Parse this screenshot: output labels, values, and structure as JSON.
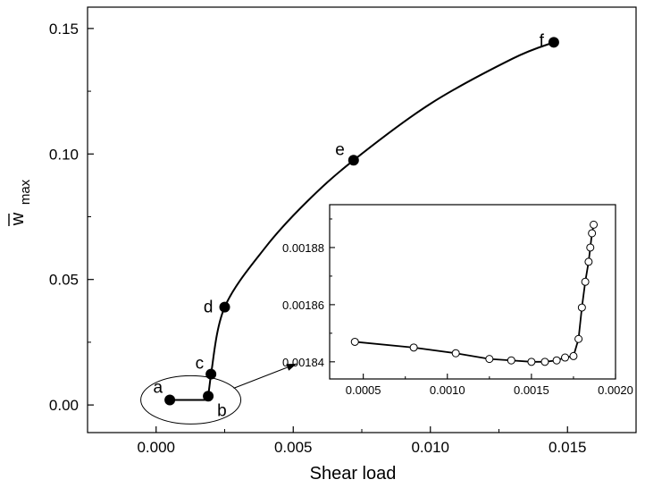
{
  "chart_data": [
    {
      "type": "line",
      "title": "",
      "xlabel": "Shear load",
      "ylabel_main": "w",
      "ylabel_sub": "max",
      "xlim": [
        -0.0025,
        0.0175
      ],
      "ylim": [
        -0.011,
        0.1585
      ],
      "xticks": [
        0.0,
        0.005,
        0.01,
        0.015
      ],
      "xtick_labels": [
        "0.000",
        "0.005",
        "0.010",
        "0.015"
      ],
      "yticks": [
        0.0,
        0.05,
        0.1,
        0.15
      ],
      "ytick_labels": [
        "0.00",
        "0.05",
        "0.10",
        "0.15"
      ],
      "grid": false,
      "series": [
        {
          "marker": "filled-circle",
          "x": [
            0.0005,
            0.0019,
            0.0019,
            0.002,
            0.0025,
            0.004,
            0.0055,
            0.0072,
            0.01,
            0.013,
            0.0145
          ],
          "y": [
            0.002,
            0.002,
            0.0035,
            0.0123,
            0.039,
            0.063,
            0.081,
            0.0975,
            0.12,
            0.138,
            0.1445
          ]
        }
      ],
      "labeled_points": [
        {
          "label": "a",
          "x": 0.0005,
          "y": 0.002
        },
        {
          "label": "b",
          "x": 0.0019,
          "y": 0.0035
        },
        {
          "label": "c",
          "x": 0.002,
          "y": 0.0123
        },
        {
          "label": "d",
          "x": 0.0025,
          "y": 0.039
        },
        {
          "label": "e",
          "x": 0.0072,
          "y": 0.0975
        },
        {
          "label": "f",
          "x": 0.0145,
          "y": 0.1445
        }
      ]
    },
    {
      "type": "line",
      "title": "",
      "xlim": [
        0.0003,
        0.002
      ],
      "ylim": [
        0.001834,
        0.001895
      ],
      "xticks": [
        0.0005,
        0.001,
        0.0015,
        0.002
      ],
      "xtick_labels": [
        "0.0005",
        "0.0010",
        "0.0015",
        "0.0020"
      ],
      "yticks": [
        0.00184,
        0.00186,
        0.00188
      ],
      "ytick_labels": [
        "0.00184",
        "0.00186",
        "0.00188"
      ],
      "grid": false,
      "series": [
        {
          "marker": "open-circle",
          "x": [
            0.00045,
            0.0008,
            0.00105,
            0.00125,
            0.00138,
            0.0015,
            0.00158,
            0.00165,
            0.0017,
            0.00175,
            0.00178,
            0.0018,
            0.00182,
            0.00184,
            0.00185,
            0.00186,
            0.00187
          ],
          "y": [
            0.001847,
            0.001845,
            0.001843,
            0.001841,
            0.0018405,
            0.00184,
            0.00184,
            0.0018405,
            0.0018415,
            0.001842,
            0.001848,
            0.001859,
            0.001868,
            0.001875,
            0.00188,
            0.001885,
            0.001888
          ]
        }
      ]
    }
  ]
}
